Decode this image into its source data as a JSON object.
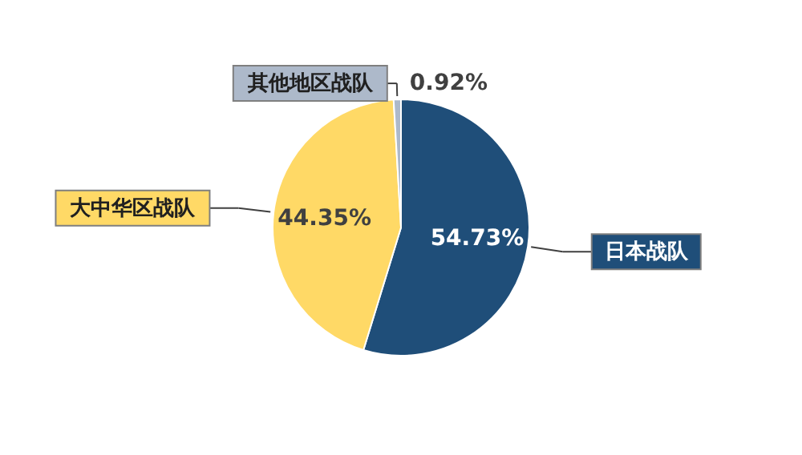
{
  "chart_data": {
    "type": "pie",
    "categories": [
      "日本战队",
      "大中华区战队",
      "其他地区战队"
    ],
    "values": [
      54.73,
      44.35,
      0.92
    ],
    "colors": [
      "#1f4e79",
      "#ffd966",
      "#adb9ca"
    ],
    "value_labels": [
      "54.73%",
      "44.35%",
      "0.92%"
    ]
  }
}
